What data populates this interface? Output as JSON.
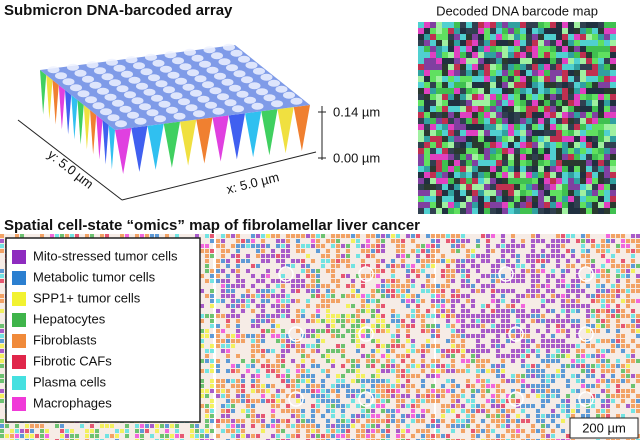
{
  "header": {
    "array_title": "Submicron DNA-barcoded array",
    "map_title": "Decoded DNA barcode map"
  },
  "surface": {
    "z_top": "0.14 µm",
    "z_bottom": "0.00 µm",
    "y_label": "y: 5.0 µm",
    "x_label": "x: 5.0 µm"
  },
  "tissue": {
    "title": "Spatial cell-state “omics” map of fibrolamellar liver cancer",
    "scale_bar": "200 µm",
    "legend": [
      {
        "label": "Mito-stressed tumor cells",
        "color": "#8e2bbf"
      },
      {
        "label": "Metabolic tumor cells",
        "color": "#2b7fd0"
      },
      {
        "label": "SPP1+ tumor cells",
        "color": "#f2f230"
      },
      {
        "label": "Hepatocytes",
        "color": "#3fb44a"
      },
      {
        "label": "Fibroblasts",
        "color": "#f08a3a"
      },
      {
        "label": "Fibrotic CAFs",
        "color": "#e0264a"
      },
      {
        "label": "Plasma cells",
        "color": "#45e0e0"
      },
      {
        "label": "Macrophages",
        "color": "#f03ad8"
      }
    ]
  }
}
